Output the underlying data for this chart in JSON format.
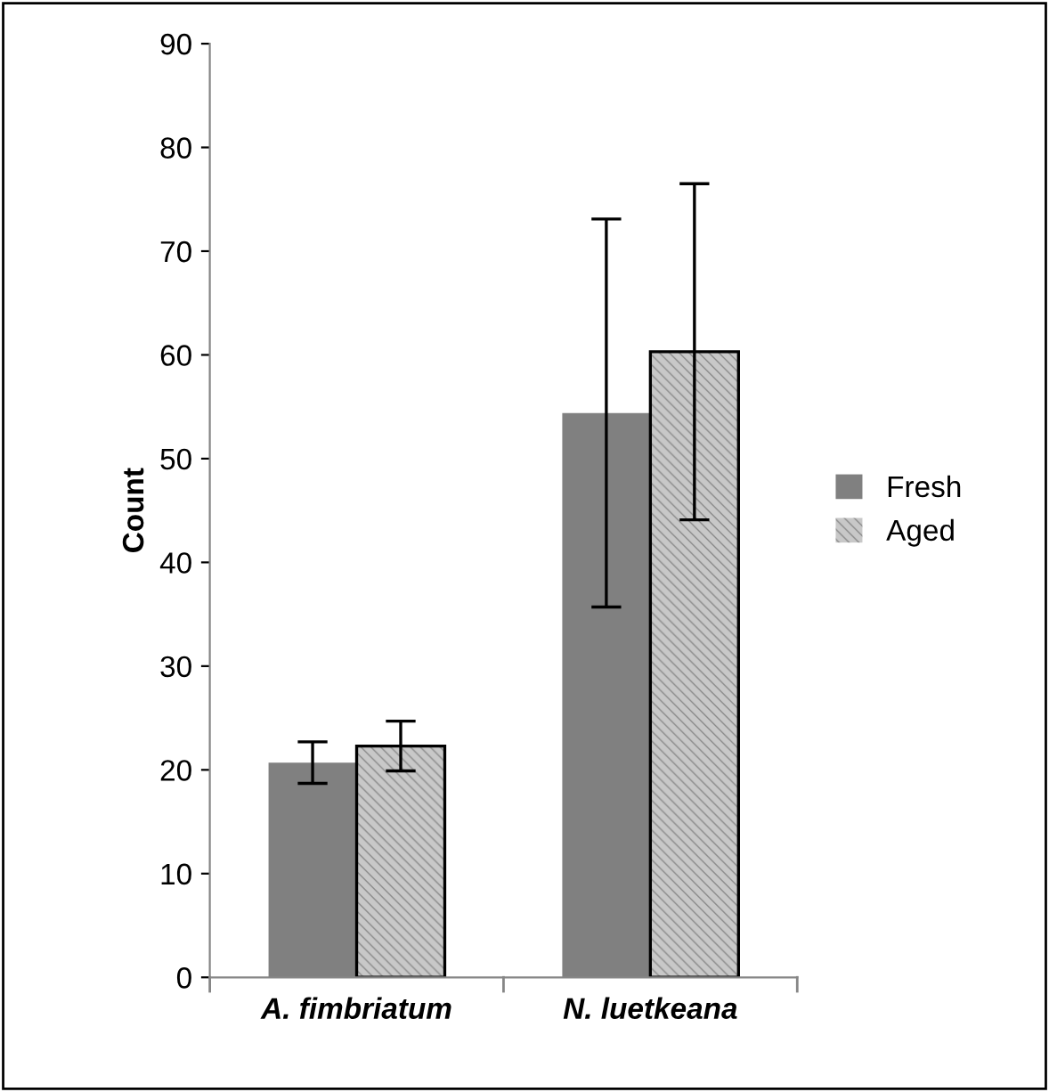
{
  "chart_data": {
    "type": "bar",
    "ylabel": "Count",
    "categories": [
      "A. fimbriatum",
      "N. luetkeana"
    ],
    "series": [
      {
        "name": "Fresh",
        "color": "#808080",
        "values": [
          20.7,
          54.4
        ],
        "errors": [
          2.0,
          18.7
        ]
      },
      {
        "name": "Aged",
        "color": "#c8c8c8",
        "values": [
          22.3,
          60.3
        ],
        "errors": [
          2.4,
          16.2
        ]
      }
    ],
    "ylim": [
      0,
      90
    ],
    "yticks": [
      0,
      10,
      20,
      30,
      40,
      50,
      60,
      70,
      80,
      90
    ],
    "grid": false,
    "legend": "right"
  }
}
